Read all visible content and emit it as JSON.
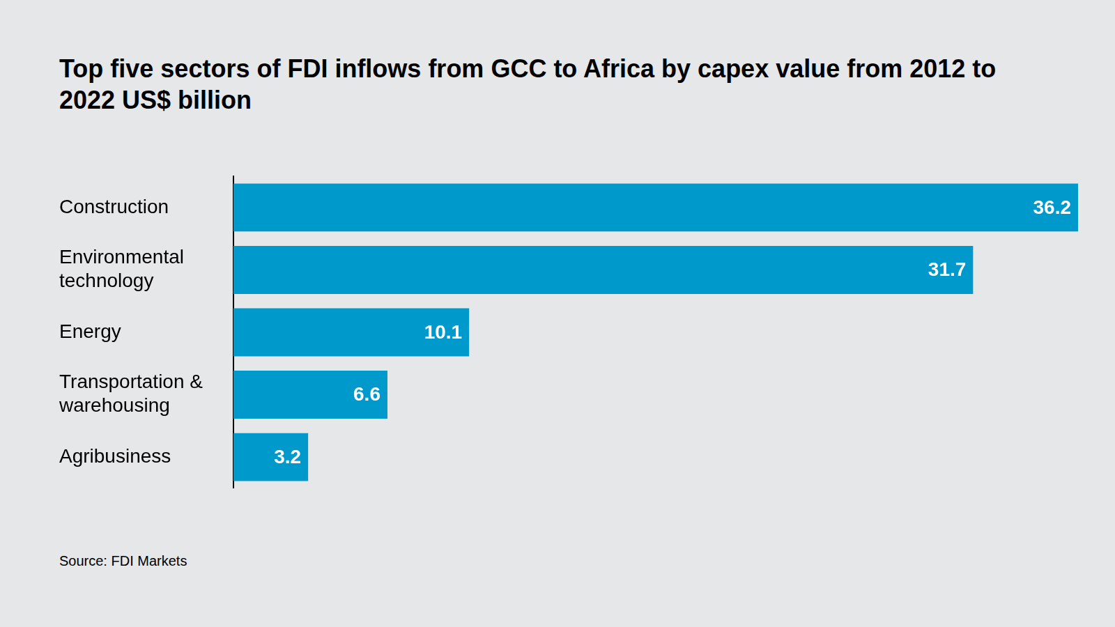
{
  "chart_data": {
    "type": "bar",
    "orientation": "horizontal",
    "title": "Top five sectors of FDI inflows from GCC to Africa by capex value from 2012 to 2022 US$ billion",
    "source": "Source: FDI Markets",
    "categories": [
      "Construction",
      "Environmental technology",
      "Energy",
      "Transportation & warehousing",
      "Agribusiness"
    ],
    "values": [
      36.2,
      31.7,
      10.1,
      6.6,
      3.2
    ],
    "color": "#0099cc",
    "xlim": [
      0,
      36.2
    ],
    "grid": false,
    "data_labels": true,
    "tick_labels": "y"
  }
}
